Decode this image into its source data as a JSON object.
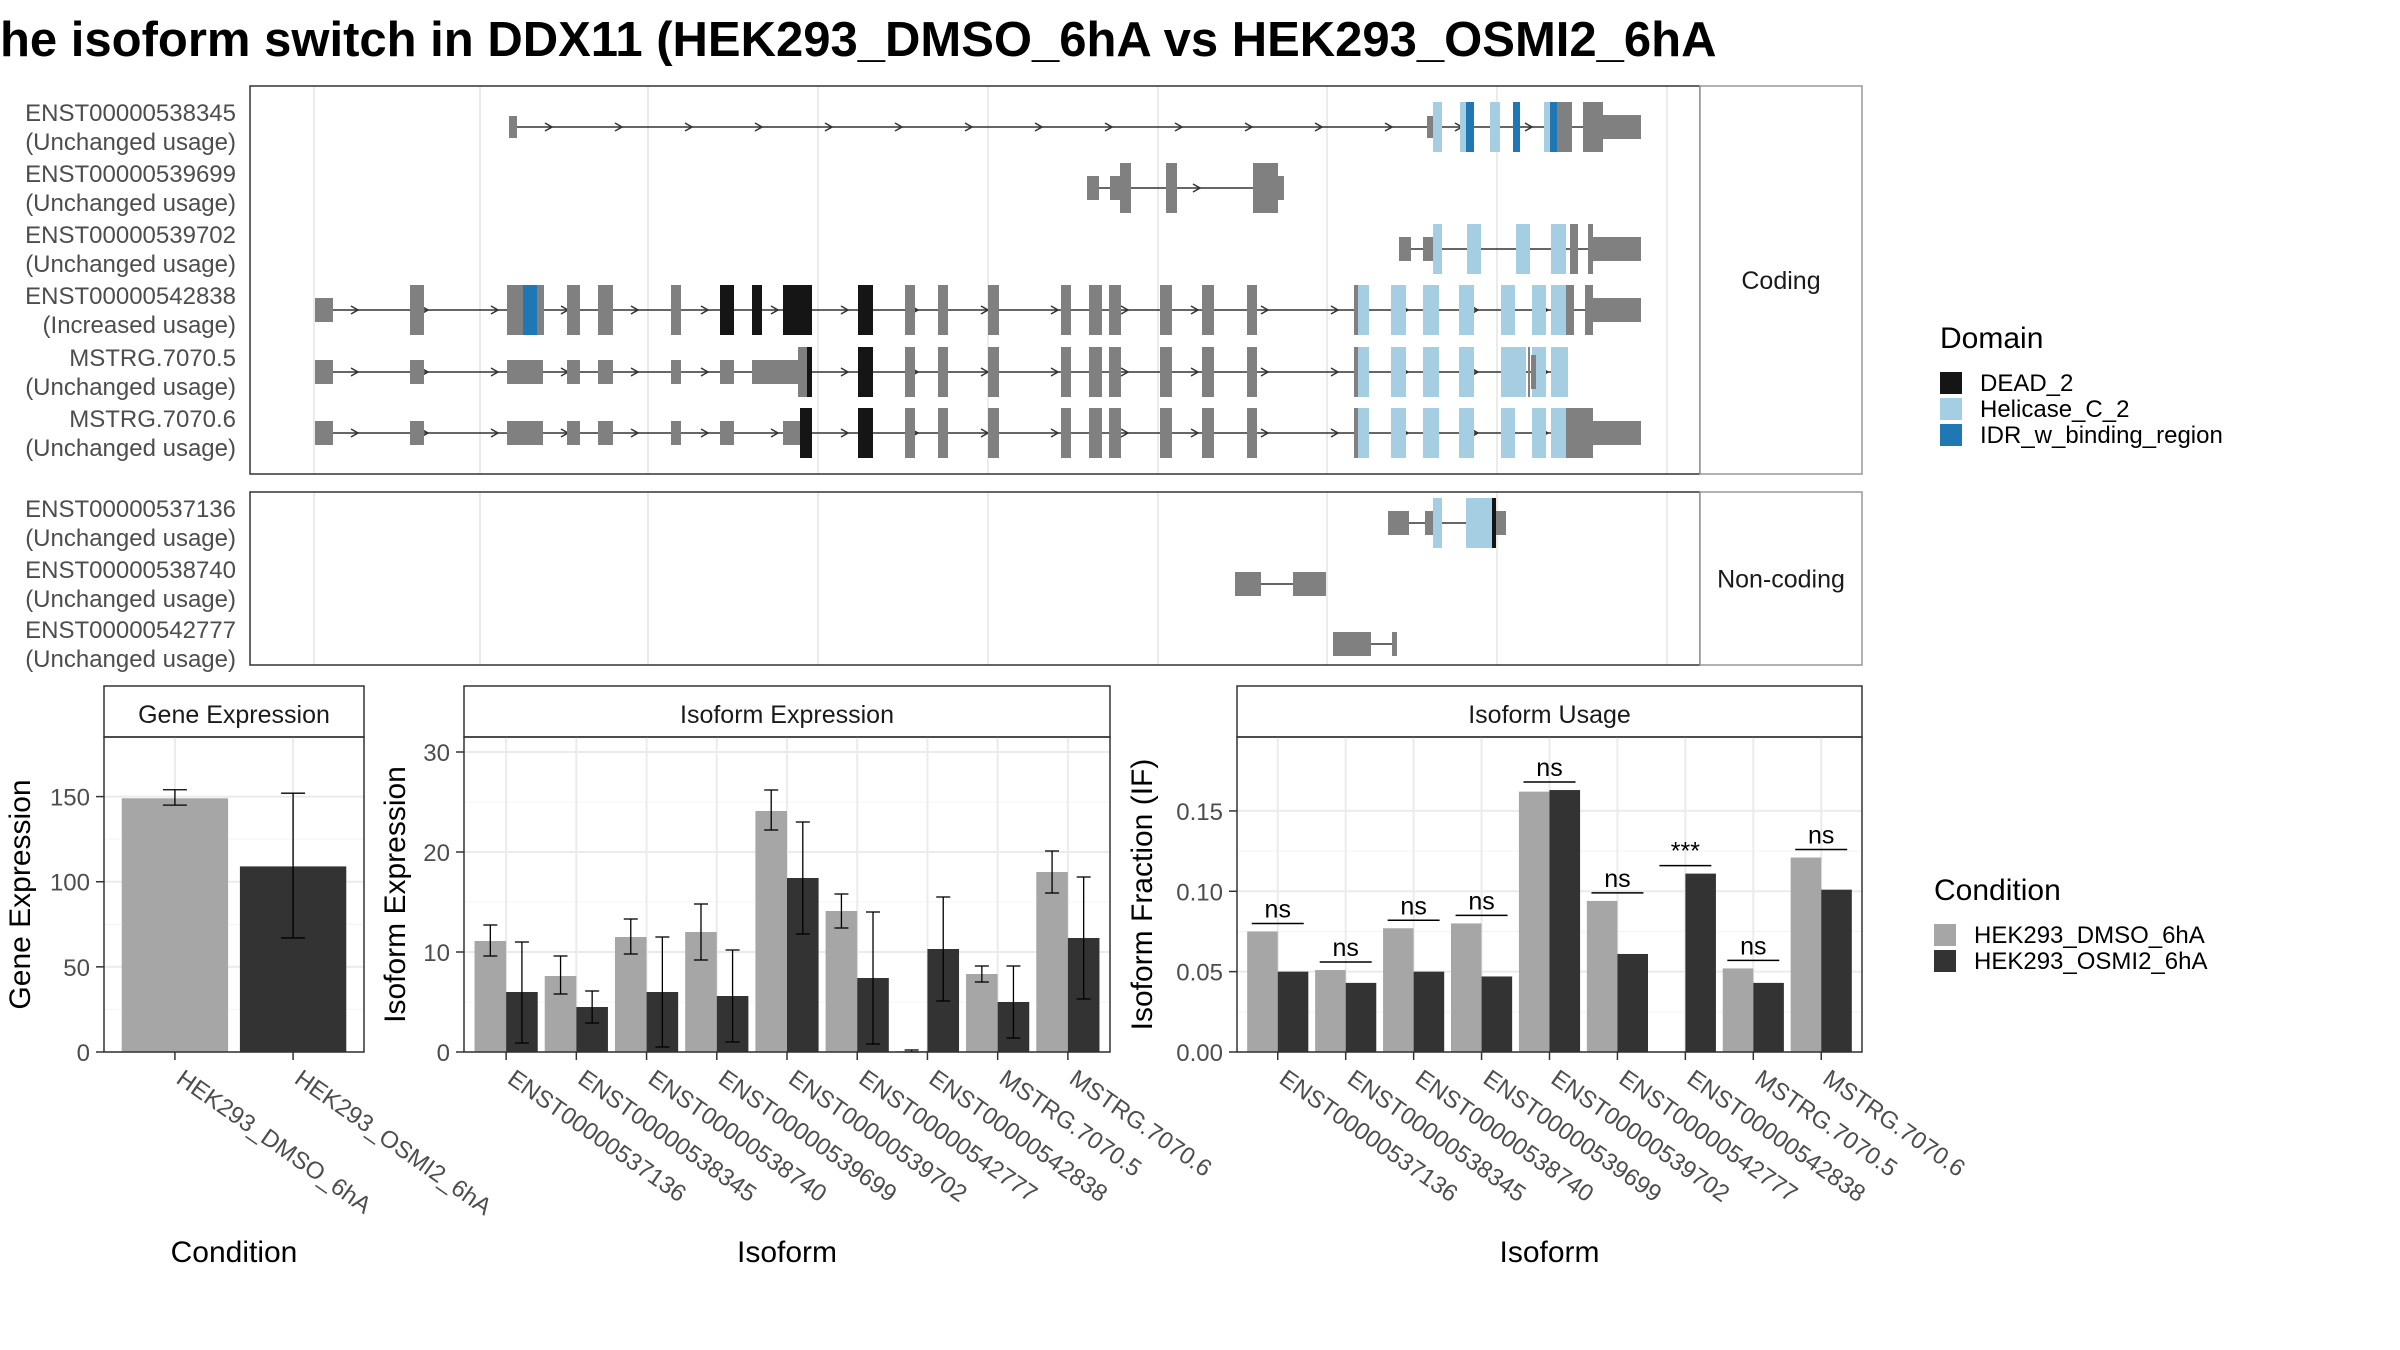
{
  "title": "he isoform switch in DDX11 (HEK293_DMSO_6hA vs HEK293_OSMI2_6hA",
  "structure": {
    "coding_strip": "Coding",
    "noncoding_strip": "Non-coding",
    "coding_isoforms": [
      {
        "id": "ENST00000538345",
        "usage": "(Unchanged usage)"
      },
      {
        "id": "ENST00000539699",
        "usage": "(Unchanged usage)"
      },
      {
        "id": "ENST00000539702",
        "usage": "(Unchanged usage)"
      },
      {
        "id": "ENST00000542838",
        "usage": "(Increased usage)"
      },
      {
        "id": "MSTRG.7070.5",
        "usage": "(Unchanged usage)"
      },
      {
        "id": "MSTRG.7070.6",
        "usage": "(Unchanged usage)"
      }
    ],
    "noncoding_isoforms": [
      {
        "id": "ENST00000537136",
        "usage": "(Unchanged usage)"
      },
      {
        "id": "ENST00000538740",
        "usage": "(Unchanged usage)"
      },
      {
        "id": "ENST00000542777",
        "usage": "(Unchanged usage)"
      }
    ]
  },
  "legend_domain": {
    "title": "Domain",
    "items": [
      {
        "label": "DEAD_2",
        "color": "#151515"
      },
      {
        "label": "Helicase_C_2",
        "color": "#a6cee3"
      },
      {
        "label": "IDR_w_binding_region",
        "color": "#1f78b4"
      }
    ]
  },
  "legend_condition": {
    "title": "Condition",
    "items": [
      {
        "label": "HEK293_DMSO_6hA",
        "color": "#a6a6a6"
      },
      {
        "label": "HEK293_OSMI2_6hA",
        "color": "#333333"
      }
    ]
  },
  "chart_data": [
    {
      "type": "bar",
      "title": "Gene Expression",
      "xlabel": "Condition",
      "ylabel": "Gene Expression",
      "ylim": [
        0,
        185
      ],
      "yticks": [
        0,
        50,
        100,
        150
      ],
      "categories": [
        "HEK293_DMSO_6hA",
        "HEK293_OSMI2_6hA"
      ],
      "values": [
        149,
        109
      ],
      "errors": [
        [
          145,
          154
        ],
        [
          67,
          152
        ]
      ]
    },
    {
      "type": "bar",
      "title": "Isoform Expression",
      "xlabel": "Isoform",
      "ylabel": "Isoform Expression",
      "ylim": [
        0,
        31.5
      ],
      "yticks": [
        0,
        10,
        20,
        30
      ],
      "categories": [
        "ENST00000537136",
        "ENST00000538345",
        "ENST00000538740",
        "ENST00000539699",
        "ENST00000539702",
        "ENST00000542777",
        "ENST00000542838",
        "MSTRG.7070.5",
        "MSTRG.7070.6"
      ],
      "series": [
        {
          "name": "HEK293_DMSO_6hA",
          "values": [
            11.1,
            7.6,
            11.5,
            12.0,
            24.1,
            14.1,
            0.1,
            7.8,
            18.0
          ],
          "errors": [
            [
              9.6,
              12.7
            ],
            [
              5.8,
              9.6
            ],
            [
              9.8,
              13.3
            ],
            [
              9.2,
              14.8
            ],
            [
              22.2,
              26.2
            ],
            [
              12.4,
              15.8
            ],
            [
              0,
              0.2
            ],
            [
              7.0,
              8.6
            ],
            [
              15.9,
              20.1
            ]
          ]
        },
        {
          "name": "HEK293_OSMI2_6hA",
          "values": [
            6.0,
            4.5,
            6.0,
            5.6,
            17.4,
            7.4,
            10.3,
            5.0,
            11.4
          ],
          "errors": [
            [
              0.9,
              11.0
            ],
            [
              2.9,
              6.1
            ],
            [
              0.5,
              11.5
            ],
            [
              1.0,
              10.2
            ],
            [
              11.8,
              23.0
            ],
            [
              0.8,
              14.0
            ],
            [
              5.1,
              15.5
            ],
            [
              1.4,
              8.6
            ],
            [
              5.3,
              17.5
            ]
          ]
        }
      ]
    },
    {
      "type": "bar",
      "title": "Isoform Usage",
      "xlabel": "Isoform",
      "ylabel": "Isoform Fraction (IF)",
      "ylim": [
        0,
        0.196
      ],
      "yticks": [
        0.0,
        0.05,
        0.1,
        0.15
      ],
      "ytick_labels": [
        "0.00",
        "0.05",
        "0.10",
        "0.15"
      ],
      "categories": [
        "ENST00000537136",
        "ENST00000538345",
        "ENST00000538740",
        "ENST00000539699",
        "ENST00000539702",
        "ENST00000542777",
        "ENST00000542838",
        "MSTRG.7070.5",
        "MSTRG.7070.6"
      ],
      "series": [
        {
          "name": "HEK293_DMSO_6hA",
          "values": [
            0.075,
            0.051,
            0.077,
            0.08,
            0.162,
            0.094,
            0.0,
            0.052,
            0.121
          ]
        },
        {
          "name": "HEK293_OSMI2_6hA",
          "values": [
            0.05,
            0.043,
            0.05,
            0.047,
            0.163,
            0.061,
            0.111,
            0.043,
            0.101
          ]
        }
      ],
      "significance": [
        "ns",
        "ns",
        "ns",
        "ns",
        "ns",
        "ns",
        "***",
        "ns",
        "ns"
      ]
    }
  ]
}
